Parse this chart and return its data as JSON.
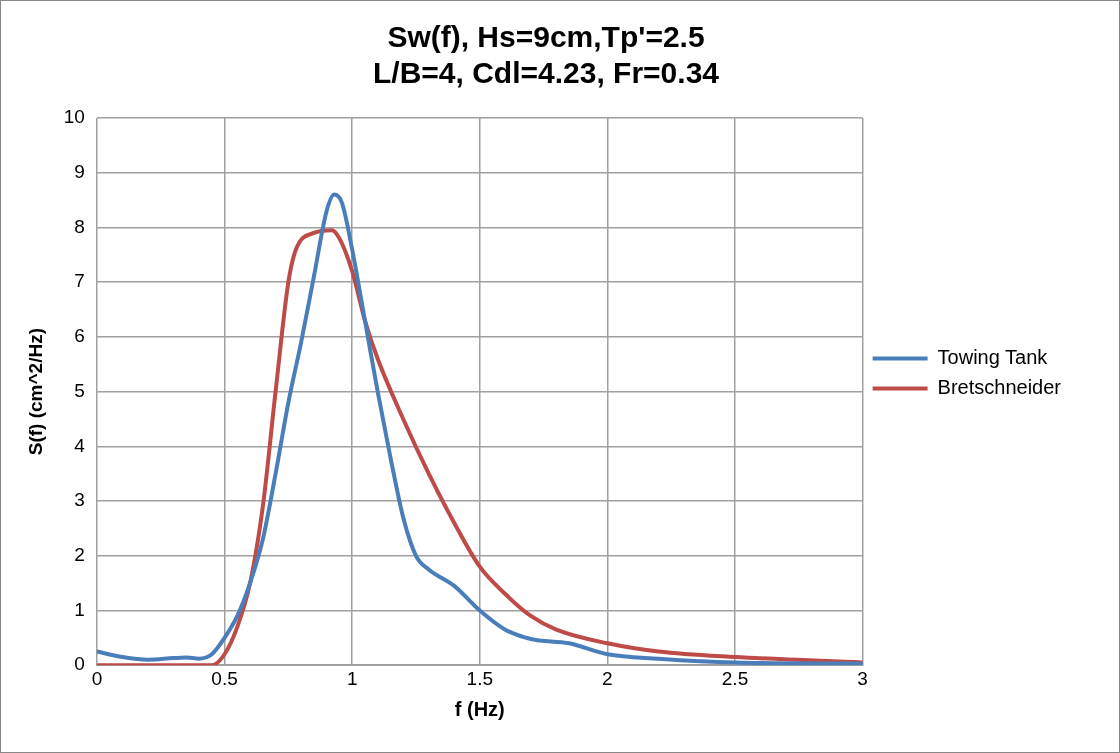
{
  "chart_data": {
    "type": "line",
    "title": "Sw(f), Hs=9cm,Tp'=2.5",
    "subtitle": "L/B=4, Cdl=4.23, Fr=0.34",
    "xlabel": "f (Hz)",
    "ylabel": "S(f) (cm^2/Hz)",
    "xlim": [
      0,
      3
    ],
    "xticks": [
      0,
      0.5,
      1,
      1.5,
      2,
      2.5,
      3
    ],
    "ylim": [
      0,
      10
    ],
    "yticks": [
      0,
      1,
      2,
      3,
      4,
      5,
      6,
      7,
      8,
      9,
      10
    ],
    "grid": true,
    "legend": "right",
    "marker": "none",
    "series": [
      {
        "name": "Towing Tank",
        "color": "#4a7ebb",
        "x": [
          0,
          0.1,
          0.2,
          0.3,
          0.35,
          0.4,
          0.45,
          0.5,
          0.55,
          0.6,
          0.65,
          0.7,
          0.75,
          0.8,
          0.85,
          0.9,
          0.93,
          0.96,
          1.0,
          1.05,
          1.1,
          1.15,
          1.2,
          1.25,
          1.3,
          1.4,
          1.5,
          1.6,
          1.7,
          1.85,
          2.0,
          2.2,
          2.5,
          3.0
        ],
        "values": [
          0.25,
          0.15,
          0.1,
          0.13,
          0.14,
          0.12,
          0.2,
          0.5,
          0.9,
          1.5,
          2.3,
          3.5,
          4.8,
          5.9,
          7.1,
          8.3,
          8.6,
          8.45,
          7.6,
          6.3,
          5.0,
          3.8,
          2.7,
          2.0,
          1.75,
          1.45,
          1.0,
          0.65,
          0.48,
          0.4,
          0.2,
          0.12,
          0.05,
          0.03
        ]
      },
      {
        "name": "Bretschneider",
        "color": "#be4b48",
        "x": [
          0,
          0.3,
          0.45,
          0.5,
          0.55,
          0.6,
          0.65,
          0.7,
          0.75,
          0.78,
          0.85,
          0.92,
          0.95,
          1.0,
          1.05,
          1.1,
          1.2,
          1.3,
          1.4,
          1.5,
          1.6,
          1.7,
          1.8,
          2.0,
          2.2,
          2.5,
          3.0
        ],
        "values": [
          0,
          0,
          0,
          0.2,
          0.7,
          1.5,
          2.9,
          5.0,
          7.0,
          7.6,
          7.9,
          7.95,
          7.8,
          7.2,
          6.3,
          5.6,
          4.5,
          3.5,
          2.6,
          1.8,
          1.3,
          0.9,
          0.65,
          0.4,
          0.25,
          0.15,
          0.05
        ]
      }
    ]
  }
}
